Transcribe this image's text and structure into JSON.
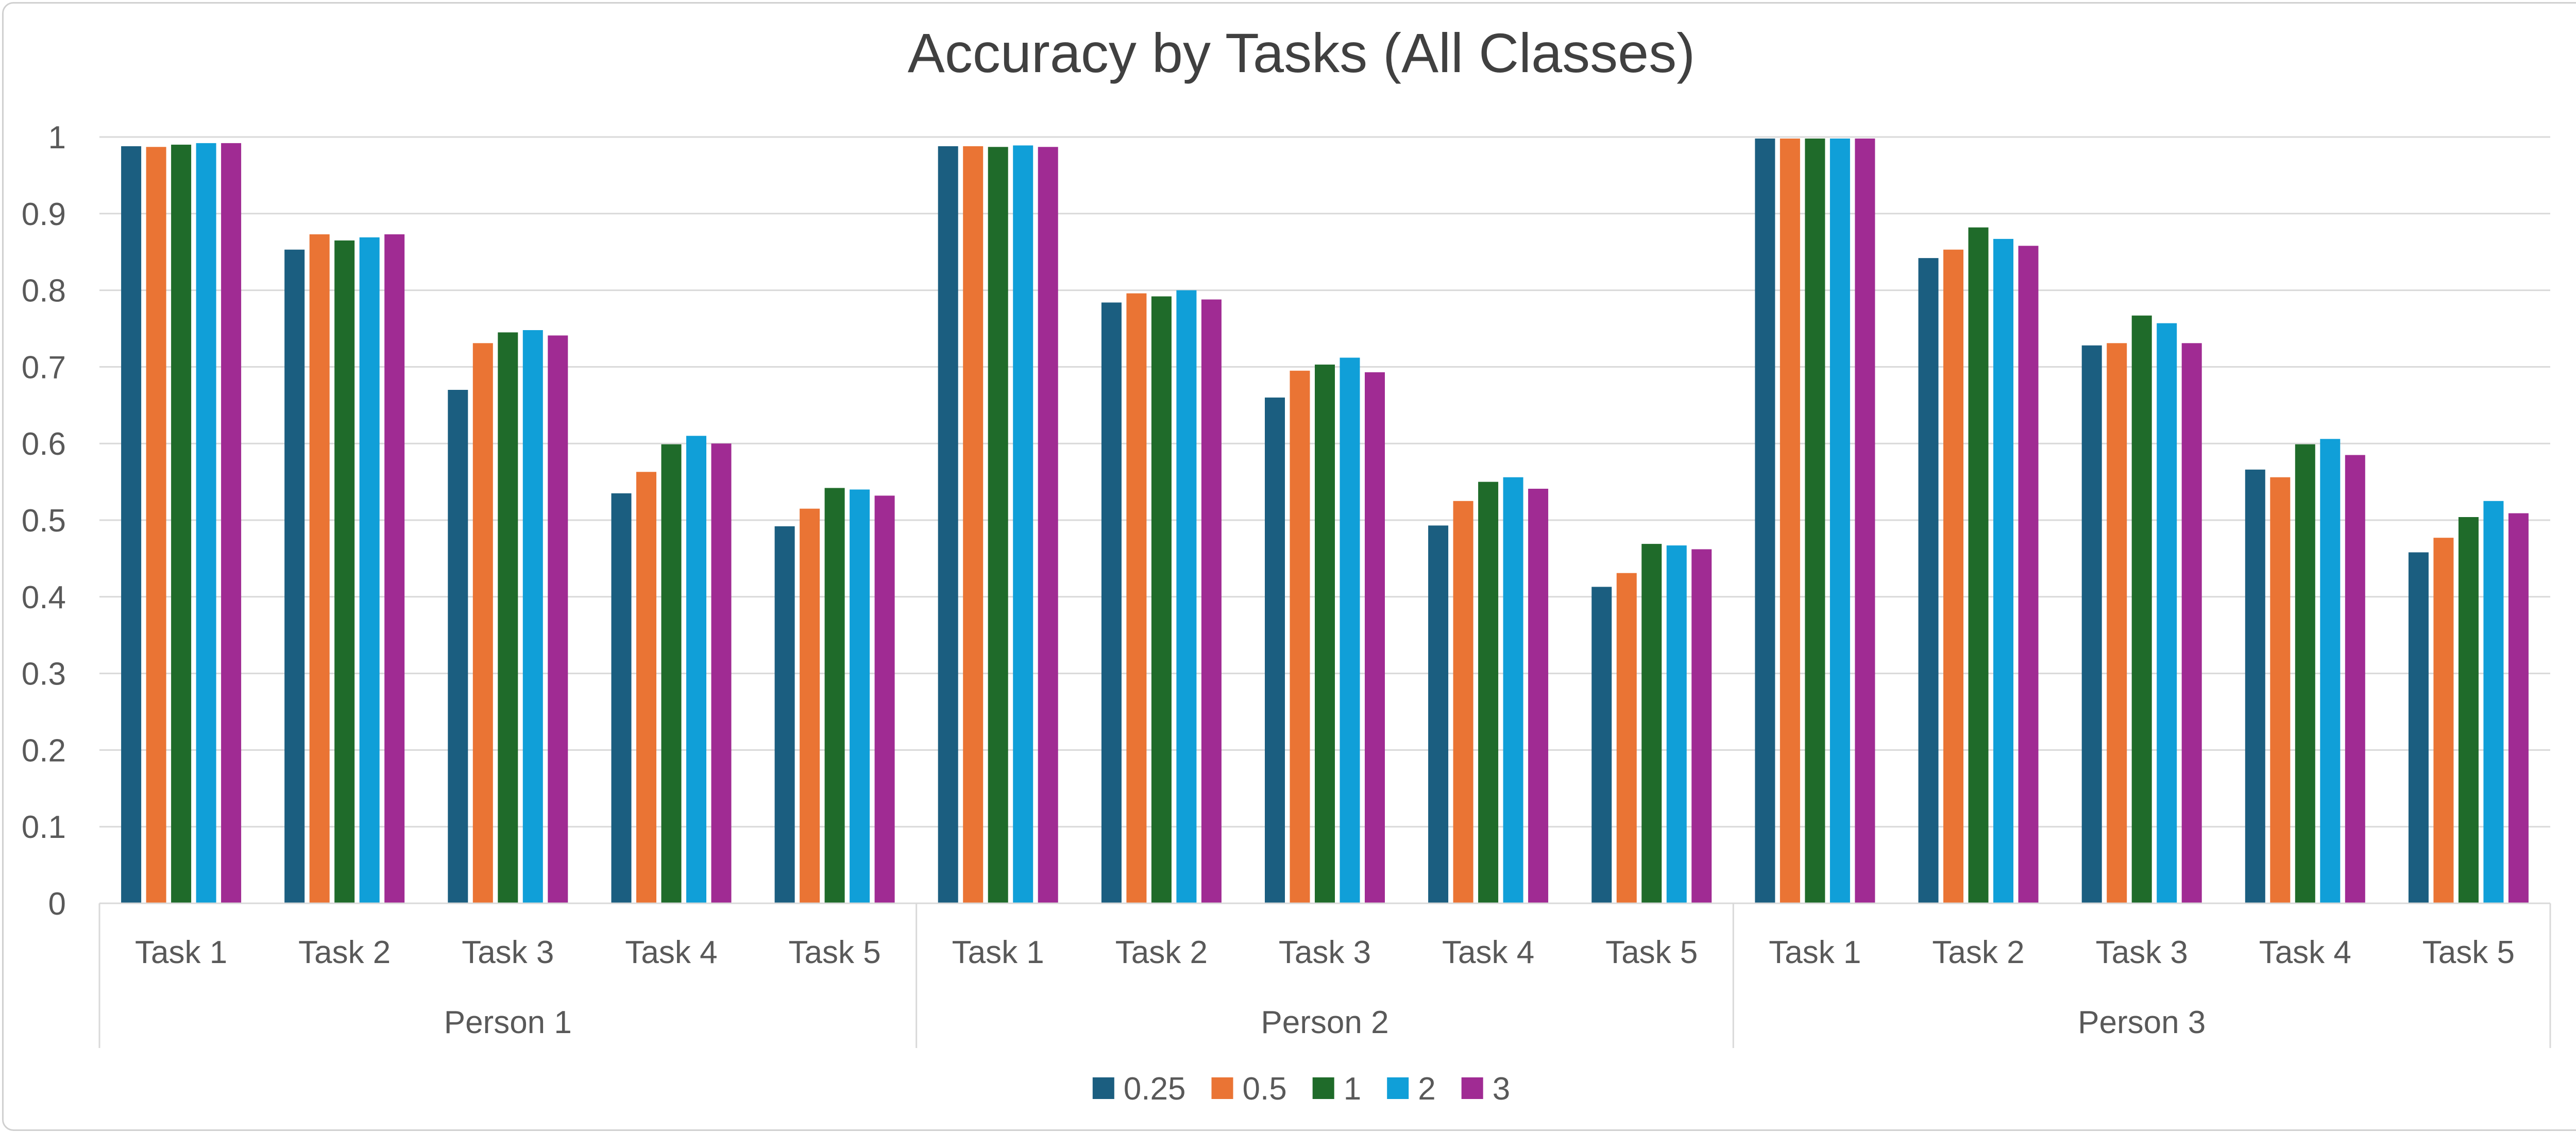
{
  "chart_data": {
    "type": "bar",
    "title": "Accuracy by Tasks (All Classes)",
    "xlabel": "",
    "ylabel": "",
    "ylim": [
      0,
      1
    ],
    "yticks": [
      "0",
      "0.1",
      "0.2",
      "0.3",
      "0.4",
      "0.5",
      "0.6",
      "0.7",
      "0.8",
      "0.9",
      "1"
    ],
    "grid": true,
    "legend_position": "bottom",
    "groups": [
      "Person 1",
      "Person 2",
      "Person 3"
    ],
    "categories": [
      "Task 1",
      "Task 2",
      "Task 3",
      "Task 4",
      "Task 5"
    ],
    "series": [
      {
        "name": "0.25",
        "color": "#1b5e80",
        "values": [
          [
            0.988,
            0.853,
            0.67,
            0.535,
            0.492
          ],
          [
            0.988,
            0.784,
            0.66,
            0.493,
            0.413
          ],
          [
            0.998,
            0.842,
            0.728,
            0.566,
            0.458
          ]
        ]
      },
      {
        "name": "0.5",
        "color": "#ea7434",
        "values": [
          [
            0.987,
            0.873,
            0.731,
            0.563,
            0.515
          ],
          [
            0.988,
            0.796,
            0.695,
            0.525,
            0.431
          ],
          [
            0.998,
            0.853,
            0.731,
            0.556,
            0.477
          ]
        ]
      },
      {
        "name": "1",
        "color": "#1f6b2a",
        "values": [
          [
            0.99,
            0.865,
            0.745,
            0.599,
            0.542
          ],
          [
            0.987,
            0.792,
            0.703,
            0.55,
            0.469
          ],
          [
            0.998,
            0.882,
            0.767,
            0.599,
            0.504
          ]
        ]
      },
      {
        "name": "2",
        "color": "#109fd8",
        "values": [
          [
            0.992,
            0.869,
            0.748,
            0.61,
            0.54
          ],
          [
            0.989,
            0.8,
            0.712,
            0.556,
            0.467
          ],
          [
            0.998,
            0.867,
            0.757,
            0.606,
            0.525
          ]
        ]
      },
      {
        "name": "3",
        "color": "#a02b93",
        "values": [
          [
            0.992,
            0.873,
            0.741,
            0.6,
            0.532
          ],
          [
            0.987,
            0.788,
            0.693,
            0.541,
            0.462
          ],
          [
            0.998,
            0.858,
            0.731,
            0.585,
            0.509
          ]
        ]
      }
    ]
  }
}
